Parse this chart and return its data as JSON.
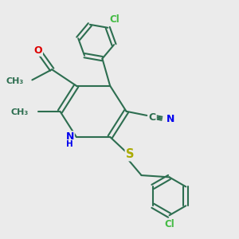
{
  "background_color": "#ebebeb",
  "bond_color": "#2d6e50",
  "bond_width": 1.5,
  "atom_colors": {
    "C": "#2d6e50",
    "N": "#0000ee",
    "O": "#dd0000",
    "S": "#aaaa00",
    "Cl": "#44bb44",
    "H": "#2d6e50"
  },
  "font_size": 8.5,
  "figsize": [
    3.0,
    3.0
  ],
  "dpi": 100
}
